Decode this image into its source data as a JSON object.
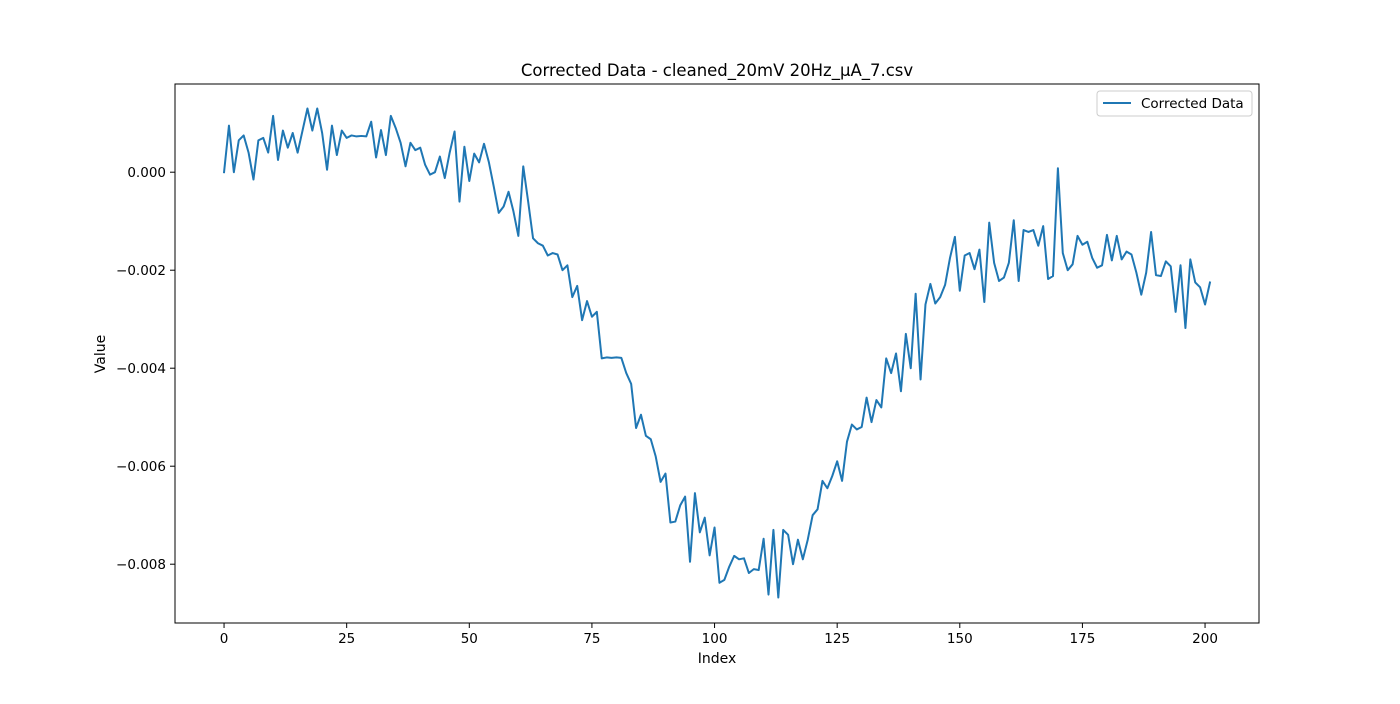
{
  "chart_data": {
    "type": "line",
    "title": "Corrected Data - cleaned_20mV 20Hz_μA_7.csv",
    "xlabel": "Index",
    "ylabel": "Value",
    "xlim": [
      -10,
      211
    ],
    "ylim": [
      -0.0092,
      0.0018
    ],
    "xticks": [
      0,
      25,
      50,
      75,
      100,
      125,
      150,
      175,
      200
    ],
    "xtick_labels": [
      "0",
      "25",
      "50",
      "75",
      "100",
      "125",
      "150",
      "175",
      "200"
    ],
    "yticks": [
      0.0,
      -0.002,
      -0.004,
      -0.006,
      -0.008
    ],
    "ytick_labels": [
      "0.000",
      "−0.002",
      "−0.004",
      "−0.006",
      "−0.008"
    ],
    "grid": false,
    "legend": {
      "position": "top-right",
      "entries": [
        "Corrected Data"
      ]
    },
    "series": [
      {
        "name": "Corrected Data",
        "color": "#1f77b4",
        "x_start": 0,
        "x_step": 1,
        "values": [
          0.0,
          0.00095,
          0.0,
          0.00065,
          0.00075,
          0.0004,
          -0.00015,
          0.00065,
          0.0007,
          0.0004,
          0.00115,
          0.00025,
          0.00085,
          0.0005,
          0.0008,
          0.0004,
          0.00085,
          0.0013,
          0.00085,
          0.0013,
          0.0008,
          5e-05,
          0.00095,
          0.00035,
          0.00085,
          0.0007,
          0.00075,
          0.00073,
          0.00074,
          0.00073,
          0.00103,
          0.0003,
          0.00086,
          0.00035,
          0.00115,
          0.0009,
          0.0006,
          0.00012,
          0.0006,
          0.00045,
          0.0005,
          0.00015,
          -5e-05,
          0.0,
          0.00032,
          -0.00012,
          0.0004,
          0.00083,
          -0.0006,
          0.00052,
          -0.00018,
          0.00038,
          0.0002,
          0.00058,
          0.0002,
          -0.0003,
          -0.00083,
          -0.0007,
          -0.0004,
          -0.0008,
          -0.0013,
          0.00012,
          -0.0006,
          -0.00135,
          -0.00145,
          -0.0015,
          -0.0017,
          -0.00165,
          -0.00168,
          -0.002,
          -0.0019,
          -0.00255,
          -0.00232,
          -0.00302,
          -0.00263,
          -0.00295,
          -0.00285,
          -0.0038,
          -0.00378,
          -0.00379,
          -0.00378,
          -0.00379,
          -0.0041,
          -0.00432,
          -0.00522,
          -0.00495,
          -0.00538,
          -0.00545,
          -0.0058,
          -0.00632,
          -0.00615,
          -0.00715,
          -0.00713,
          -0.0068,
          -0.00662,
          -0.00795,
          -0.00655,
          -0.00735,
          -0.00705,
          -0.00782,
          -0.00725,
          -0.00838,
          -0.00832,
          -0.00805,
          -0.00783,
          -0.0079,
          -0.00788,
          -0.00818,
          -0.0081,
          -0.00812,
          -0.00748,
          -0.00862,
          -0.0073,
          -0.00868,
          -0.0073,
          -0.0074,
          -0.008,
          -0.0075,
          -0.0079,
          -0.0075,
          -0.007,
          -0.00688,
          -0.0063,
          -0.00645,
          -0.0062,
          -0.0059,
          -0.0063,
          -0.0055,
          -0.00515,
          -0.00525,
          -0.0052,
          -0.0046,
          -0.0051,
          -0.00465,
          -0.0048,
          -0.0038,
          -0.0041,
          -0.0037,
          -0.00447,
          -0.0033,
          -0.004,
          -0.00248,
          -0.00423,
          -0.0027,
          -0.00228,
          -0.00268,
          -0.00255,
          -0.0023,
          -0.00175,
          -0.00132,
          -0.00242,
          -0.0017,
          -0.00165,
          -0.00198,
          -0.00158,
          -0.00265,
          -0.00103,
          -0.00185,
          -0.00222,
          -0.00215,
          -0.00185,
          -0.00098,
          -0.00222,
          -0.00118,
          -0.00122,
          -0.00118,
          -0.0015,
          -0.0011,
          -0.00218,
          -0.00212,
          8e-05,
          -0.00165,
          -0.002,
          -0.00188,
          -0.0013,
          -0.00148,
          -0.00142,
          -0.00175,
          -0.00195,
          -0.0019,
          -0.00128,
          -0.0018,
          -0.0013,
          -0.00178,
          -0.00162,
          -0.00168,
          -0.00205,
          -0.0025,
          -0.00205,
          -0.00122,
          -0.0021,
          -0.00212,
          -0.00182,
          -0.00192,
          -0.00285,
          -0.0019,
          -0.00318,
          -0.00178,
          -0.00225,
          -0.00235,
          -0.0027,
          -0.00225
        ]
      }
    ]
  }
}
